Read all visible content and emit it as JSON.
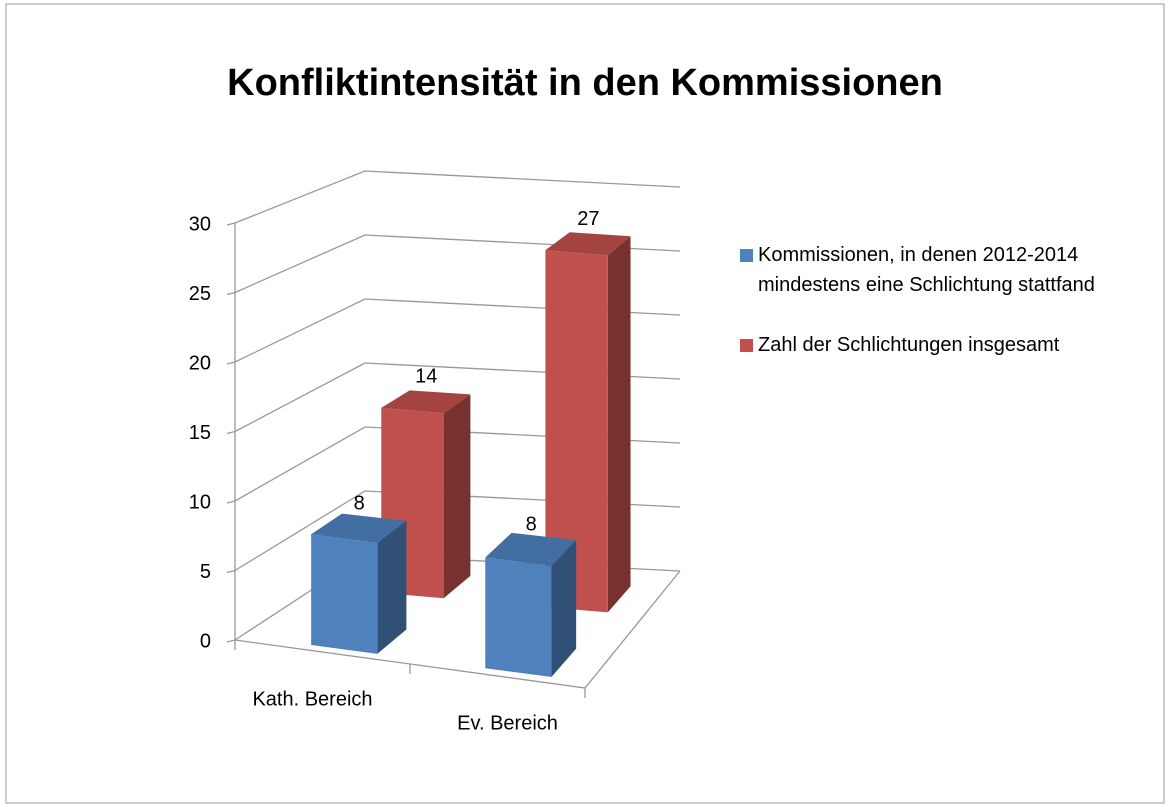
{
  "chart_data": {
    "type": "bar3d",
    "title": "Konfliktintensität in den Kommissionen",
    "categories": [
      "Kath. Bereich",
      "Ev. Bereich"
    ],
    "series": [
      {
        "name": "Kommissionen, in denen 2012-2014 mindestens eine Schlichtung stattfand",
        "color": "#4f81bd",
        "values": [
          8,
          8
        ]
      },
      {
        "name": "Zahl der Schlichtungen insgesamt",
        "color": "#c0504d",
        "values": [
          14,
          27
        ]
      }
    ],
    "ylim": [
      0,
      30
    ],
    "yticks": [
      0,
      5,
      10,
      15,
      20,
      25,
      30
    ],
    "grid": true,
    "legend": "right"
  }
}
